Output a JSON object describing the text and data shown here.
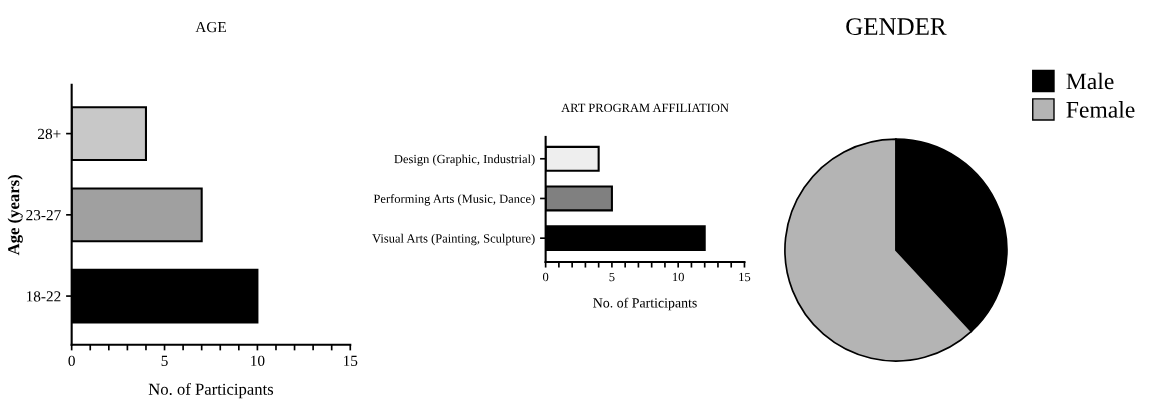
{
  "chart_data": [
    {
      "type": "bar",
      "orientation": "horizontal",
      "title": "AGE",
      "xlabel": "No. of Participants",
      "ylabel": "Age (years)",
      "categories": [
        "28+",
        "23-27",
        "18-22"
      ],
      "values": [
        4,
        7,
        10
      ],
      "colors": [
        "#c8c8c8",
        "#a0a0a0",
        "#000000"
      ],
      "xlim": [
        0,
        15
      ],
      "xticks": [
        0,
        {
          "value": 1,
          "label": null
        },
        {
          "value": 2,
          "label": null
        },
        {
          "value": 3,
          "label": null
        },
        {
          "value": 4,
          "label": null
        },
        5,
        {
          "value": 6,
          "label": null
        },
        {
          "value": 7,
          "label": null
        },
        {
          "value": 8,
          "label": null
        },
        {
          "value": 9,
          "label": null
        },
        10,
        {
          "value": 11,
          "label": null
        },
        {
          "value": 12,
          "label": null
        },
        {
          "value": 13,
          "label": null
        },
        {
          "value": 14,
          "label": null
        },
        15
      ],
      "grid": false
    },
    {
      "type": "bar",
      "orientation": "horizontal",
      "title": "ART PROGRAM AFFILIATION",
      "xlabel": "No. of Participants",
      "categories": [
        "Design (Graphic, Industrial)",
        "Performing Arts (Music, Dance)",
        "Visual Arts (Painting, Sculpture)"
      ],
      "values": [
        4,
        5,
        12
      ],
      "colors": [
        "#eeeeee",
        "#808080",
        "#000000"
      ],
      "xlim": [
        0,
        15
      ],
      "xticks": [
        0,
        {
          "value": 1,
          "label": null
        },
        {
          "value": 2,
          "label": null
        },
        {
          "value": 3,
          "label": null
        },
        {
          "value": 4,
          "label": null
        },
        5,
        {
          "value": 6,
          "label": null
        },
        {
          "value": 7,
          "label": null
        },
        {
          "value": 8,
          "label": null
        },
        {
          "value": 9,
          "label": null
        },
        10,
        {
          "value": 11,
          "label": null
        },
        {
          "value": 12,
          "label": null
        },
        {
          "value": 13,
          "label": null
        },
        {
          "value": 14,
          "label": null
        },
        15
      ],
      "grid": false
    },
    {
      "type": "pie",
      "title": "GENDER",
      "categories": [
        "Male",
        "Female"
      ],
      "values": [
        38.1,
        61.9
      ],
      "colors": [
        "#000000",
        "#b4b4b4"
      ],
      "legend": "right"
    }
  ]
}
